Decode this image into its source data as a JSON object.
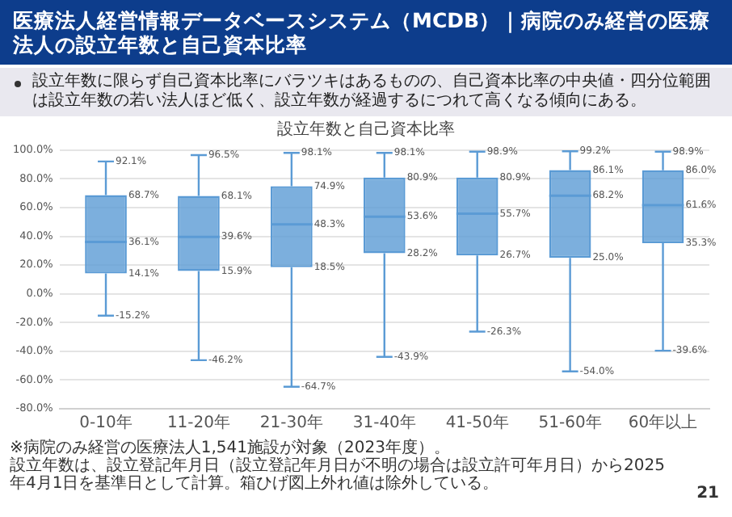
{
  "chart_data": {
    "type": "box",
    "title": "医療法人経営情報データベースシステム（MCDB）｜病院のみ経営の医療法人の設立年数と自己資本比率",
    "subtitle": "設立年数に限らず自己資本比率にバラツキはあるものの、自己資本比率の中央値・四分位範囲は設立年数の若い法人ほど低く、設立年数が経過するにつれて高くなる傾向にある。",
    "annotations": [
      "設立年数と自己資本比率",
      "※病院のみ経営の医療法人1,541施設が対象（2023年度）。",
      "設立年数は、設立登記年月日（設立登記年月日が不明の場合は設立許可年月日）から2025年4月1日を基準日として計算。箱ひげ図上外れ値は除外している。",
      "21"
    ],
    "categories": [
      "0-10年",
      "11-20年",
      "21-30年",
      "31-40年",
      "41-50年",
      "51-60年",
      "60年以上"
    ],
    "boxes": [
      {
        "low": -15.2,
        "q1": 14.1,
        "median": 36.1,
        "q3": 68.7,
        "high": 92.1
      },
      {
        "low": -46.2,
        "q1": 15.9,
        "median": 39.6,
        "q3": 68.1,
        "high": 96.5
      },
      {
        "low": -64.7,
        "q1": 18.5,
        "median": 48.3,
        "q3": 74.9,
        "high": 98.1
      },
      {
        "low": -43.9,
        "q1": 28.2,
        "median": 53.6,
        "q3": 80.9,
        "high": 98.1
      },
      {
        "low": -26.3,
        "q1": 26.7,
        "median": 55.7,
        "q3": 80.9,
        "high": 98.9
      },
      {
        "low": -54.0,
        "q1": 25.0,
        "median": 68.2,
        "q3": 86.1,
        "high": 99.2
      },
      {
        "low": -39.6,
        "q1": 35.3,
        "median": 61.6,
        "q3": 86.0,
        "high": 98.9
      }
    ],
    "value_labels": [
      [
        "-15.2%",
        "14.1%",
        "36.1%",
        "68.7%",
        "92.1%"
      ],
      [
        "-46.2%",
        "15.9%",
        "39.6%",
        "68.1%",
        "96.5%"
      ],
      [
        "-64.7%",
        "18.5%",
        "48.3%",
        "74.9%",
        "98.1%"
      ],
      [
        "-43.9%",
        "28.2%",
        "53.6%",
        "80.9%",
        "98.1%"
      ],
      [
        "-26.3%",
        "26.7%",
        "55.7%",
        "80.9%",
        "98.9%"
      ],
      [
        "-54.0%",
        "25.0%",
        "68.2%",
        "86.1%",
        "99.2%"
      ],
      [
        "-39.6%",
        "35.3%",
        "61.6%",
        "86.0%",
        "98.9%"
      ]
    ],
    "color": "#5b9bd5",
    "ylim": [
      -80,
      100
    ],
    "yticks": [
      {
        "value": -80,
        "label": "-80.0%"
      },
      {
        "value": -60,
        "label": "-60.0%"
      },
      {
        "value": -40,
        "label": "-40.0%"
      },
      {
        "value": -20,
        "label": "-20.0%"
      },
      {
        "value": 0,
        "label": "0.0%"
      },
      {
        "value": 20,
        "label": "20.0%"
      },
      {
        "value": 40,
        "label": "40.0%"
      },
      {
        "value": 60,
        "label": "60.0%"
      },
      {
        "value": 80,
        "label": "80.0%"
      },
      {
        "value": 100,
        "label": "100.0%"
      }
    ],
    "grid": "y"
  }
}
